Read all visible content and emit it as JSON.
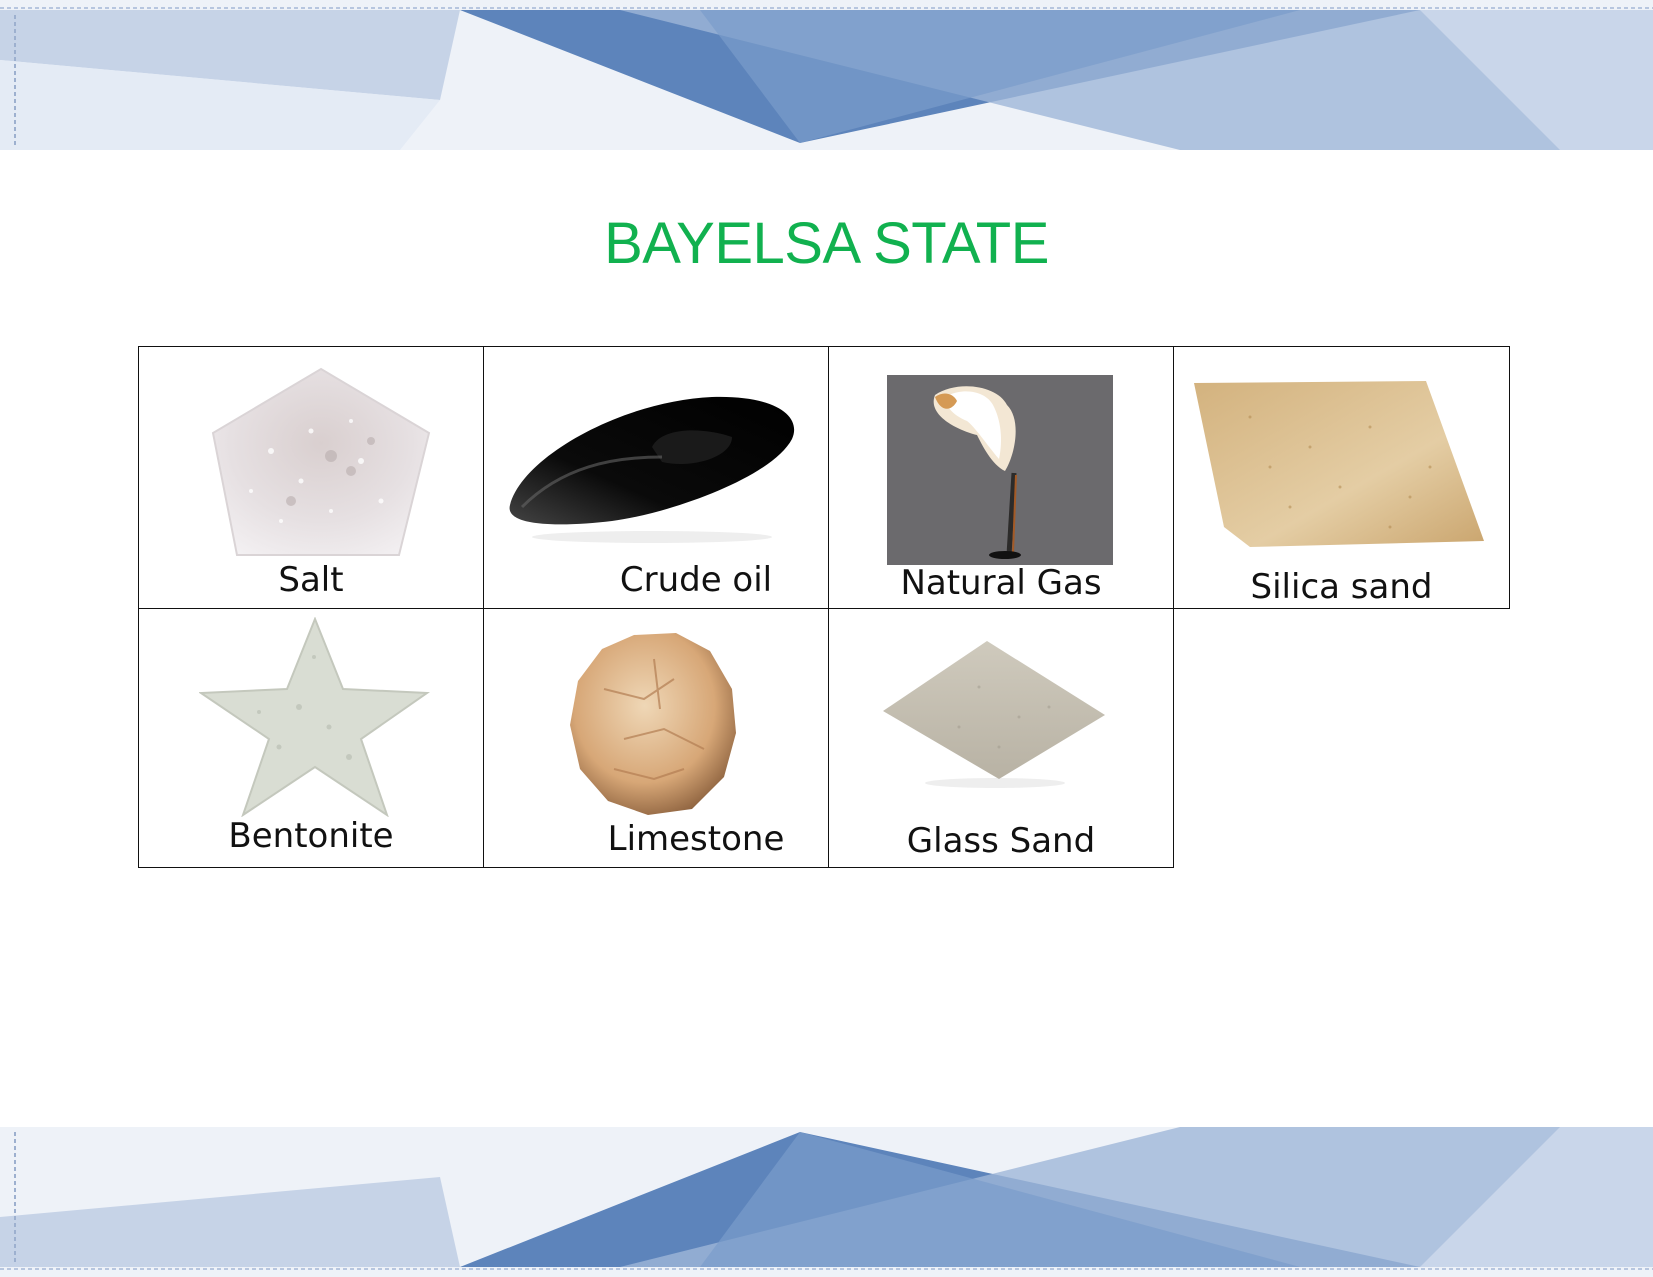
{
  "slide": {
    "title": "BAYELSA STATE"
  },
  "resources": [
    {
      "label": "Salt",
      "icon": "salt-icon"
    },
    {
      "label": "Crude oil",
      "icon": "crude-oil-icon"
    },
    {
      "label": "Natural Gas",
      "icon": "natural-gas-flare-icon"
    },
    {
      "label": "Silica sand",
      "icon": "silica-sand-icon"
    },
    {
      "label": "Bentonite",
      "icon": "bentonite-icon"
    },
    {
      "label": "Limestone",
      "icon": "limestone-icon"
    },
    {
      "label": "Glass Sand",
      "icon": "glass-sand-icon"
    }
  ],
  "colors": {
    "title": "#11b14f",
    "banner_dark": "#5a7fb6",
    "banner_light": "#c9d6e9"
  }
}
